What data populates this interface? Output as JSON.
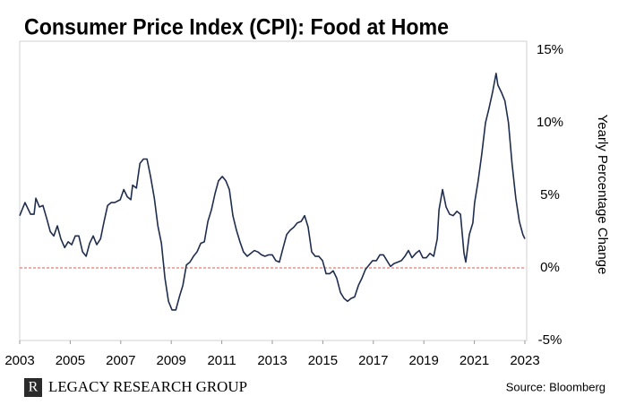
{
  "chart_data": {
    "type": "line",
    "title": "Consumer Price Index (CPI): Food at Home",
    "y_label": "Yearly Percentage Change",
    "source": "Source: Bloomberg",
    "brand": "LEGACY RESEARCH GROUP",
    "brand_mark": "R",
    "xlim": [
      2003,
      2023
    ],
    "xticks": [
      2003,
      2005,
      2007,
      2009,
      2011,
      2013,
      2015,
      2017,
      2019,
      2021,
      2023
    ],
    "ylim": [
      -5,
      15
    ],
    "yticks": [
      {
        "value": -5,
        "label": "-5%"
      },
      {
        "value": 0,
        "label": "0%"
      },
      {
        "value": 5,
        "label": "5%"
      },
      {
        "value": 10,
        "label": "10%"
      },
      {
        "value": 15,
        "label": "15%"
      }
    ],
    "y_axis_side": "right",
    "zero_line_color": "#e05a4e",
    "series": [
      {
        "color": "#1f2d4e",
        "x": [
          2003.0,
          2003.21,
          2003.43,
          2003.57,
          2003.64,
          2003.78,
          2003.92,
          2004.07,
          2004.21,
          2004.35,
          2004.49,
          2004.63,
          2004.78,
          2004.92,
          2005.06,
          2005.2,
          2005.34,
          2005.49,
          2005.63,
          2005.77,
          2005.91,
          2006.05,
          2006.2,
          2006.34,
          2006.48,
          2006.62,
          2006.76,
          2006.98,
          2007.12,
          2007.26,
          2007.4,
          2007.47,
          2007.62,
          2007.76,
          2007.9,
          2008.04,
          2008.18,
          2008.33,
          2008.47,
          2008.61,
          2008.75,
          2008.89,
          2009.03,
          2009.18,
          2009.32,
          2009.46,
          2009.6,
          2009.74,
          2009.88,
          2010.02,
          2010.17,
          2010.31,
          2010.45,
          2010.59,
          2010.73,
          2010.87,
          2011.02,
          2011.16,
          2011.3,
          2011.44,
          2011.58,
          2011.72,
          2011.86,
          2012.01,
          2012.15,
          2012.29,
          2012.43,
          2012.57,
          2012.71,
          2012.86,
          2013.0,
          2013.14,
          2013.28,
          2013.43,
          2013.57,
          2013.71,
          2013.85,
          2013.99,
          2014.14,
          2014.28,
          2014.42,
          2014.56,
          2014.7,
          2014.84,
          2014.99,
          2015.13,
          2015.27,
          2015.41,
          2015.55,
          2015.7,
          2015.84,
          2015.98,
          2016.12,
          2016.26,
          2016.41,
          2016.55,
          2016.69,
          2016.83,
          2016.97,
          2017.12,
          2017.26,
          2017.4,
          2017.54,
          2017.68,
          2017.82,
          2017.97,
          2018.11,
          2018.25,
          2018.39,
          2018.53,
          2018.68,
          2018.82,
          2018.96,
          2019.1,
          2019.24,
          2019.39,
          2019.53,
          2019.6,
          2019.74,
          2019.88,
          2020.02,
          2020.16,
          2020.31,
          2020.45,
          2020.59,
          2020.66,
          2020.8,
          2020.94,
          2021.01,
          2021.15,
          2021.29,
          2021.44,
          2021.58,
          2021.72,
          2021.86,
          2021.93,
          2022.07,
          2022.21,
          2022.35,
          2022.49,
          2022.64,
          2022.78,
          2022.92,
          2023.0
        ],
        "values": [
          3.6,
          4.5,
          3.7,
          3.7,
          4.8,
          4.2,
          4.3,
          3.4,
          2.5,
          2.2,
          2.9,
          2.0,
          1.4,
          1.8,
          1.6,
          2.2,
          2.2,
          1.1,
          0.8,
          1.7,
          2.2,
          1.6,
          2.0,
          3.2,
          4.3,
          4.5,
          4.5,
          4.7,
          5.4,
          4.9,
          4.7,
          5.7,
          5.5,
          7.2,
          7.5,
          7.5,
          6.3,
          4.8,
          2.9,
          1.7,
          -0.7,
          -2.3,
          -2.9,
          -2.9,
          -2.0,
          -1.2,
          0.2,
          0.4,
          0.8,
          1.1,
          1.7,
          1.8,
          3.2,
          4.0,
          5.1,
          6.0,
          6.3,
          6.0,
          5.4,
          3.6,
          2.6,
          1.8,
          1.1,
          0.8,
          1.0,
          1.2,
          1.1,
          0.9,
          0.8,
          0.9,
          0.9,
          0.5,
          0.4,
          1.4,
          2.3,
          2.6,
          2.8,
          3.1,
          3.2,
          3.6,
          2.8,
          1.1,
          0.8,
          0.8,
          0.5,
          -0.4,
          -0.4,
          -0.2,
          -0.7,
          -1.7,
          -2.1,
          -2.3,
          -2.1,
          -2.0,
          -1.2,
          -0.7,
          -0.1,
          0.2,
          0.5,
          0.5,
          0.9,
          0.9,
          0.5,
          0.1,
          0.3,
          0.4,
          0.5,
          0.8,
          1.2,
          0.7,
          1.0,
          1.2,
          0.7,
          0.7,
          1.0,
          0.8,
          2.0,
          4.0,
          5.4,
          4.2,
          3.7,
          3.6,
          3.9,
          3.7,
          1.0,
          0.4,
          2.3,
          3.1,
          4.5,
          6.0,
          7.8,
          10.0,
          11.0,
          12.1,
          13.4,
          12.6,
          12.1,
          11.5,
          10.0,
          7.2,
          4.8,
          3.2,
          2.3,
          2.0
        ]
      }
    ]
  }
}
